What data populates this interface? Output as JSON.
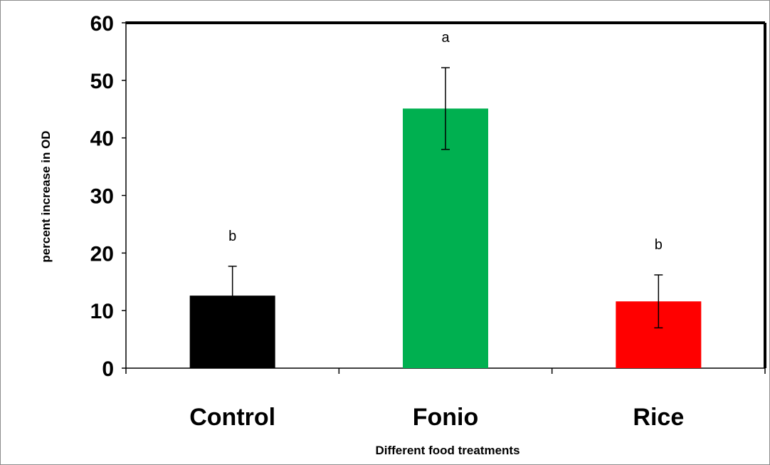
{
  "chart_data": {
    "type": "bar",
    "title": "",
    "xlabel": "Different food treatments",
    "ylabel": "percent increase in OD",
    "categories": [
      "Control",
      "Fonio",
      "Rice"
    ],
    "values": [
      12.6,
      45.1,
      11.6
    ],
    "error": [
      5.1,
      7.1,
      4.6
    ],
    "significance_labels": [
      "b",
      "a",
      "b"
    ],
    "colors": [
      "#000000",
      "#00b050",
      "#ff0000"
    ],
    "ylim": [
      0,
      60
    ],
    "yticks": [
      "0",
      "10",
      "20",
      "30",
      "40",
      "50",
      "60"
    ],
    "grid": false,
    "legend": "none"
  }
}
